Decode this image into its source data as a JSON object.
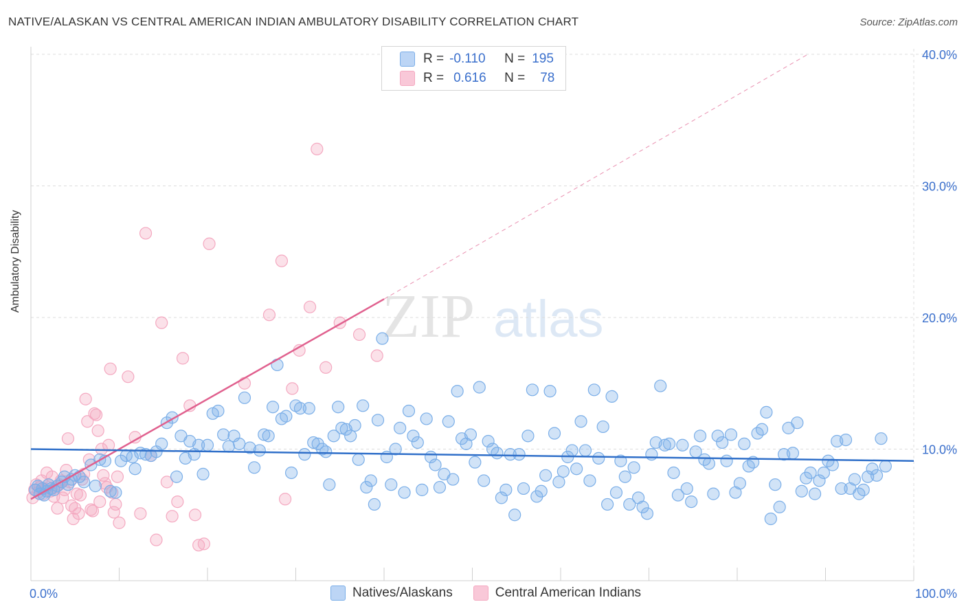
{
  "header": {
    "title": "NATIVE/ALASKAN VS CENTRAL AMERICAN INDIAN AMBULATORY DISABILITY CORRELATION CHART",
    "source": "Source: ZipAtlas.com"
  },
  "legend": {
    "rows": [
      {
        "r_label": "R =",
        "r_value": "-0.110",
        "n_label": "N =",
        "n_value": "195"
      },
      {
        "r_label": "R =",
        "r_value": "0.616",
        "n_label": "N =",
        "n_value": "78"
      }
    ]
  },
  "watermark": {
    "zip": "ZIP",
    "atlas": "atlas"
  },
  "colors": {
    "blue": "#7aaee8",
    "blue_line": "#2f6fc9",
    "pink": "#f4a8c0",
    "pink_line": "#e0608e",
    "tick_label": "#3a6fcc",
    "grid": "#dcdcdc"
  },
  "chart_data": {
    "type": "scatter",
    "title": "NATIVE/ALASKAN VS CENTRAL AMERICAN INDIAN AMBULATORY DISABILITY CORRELATION CHART",
    "xlabel": "",
    "ylabel": "Ambulatory Disability",
    "xlim": [
      0,
      100
    ],
    "ylim": [
      0,
      40
    ],
    "x_tick_labels": [
      "0.0%",
      "100.0%"
    ],
    "y_tick_labels": [
      "10.0%",
      "20.0%",
      "30.0%",
      "40.0%"
    ],
    "y_ticks": [
      10,
      20,
      30,
      40
    ],
    "grid": true,
    "series": [
      {
        "name": "Natives/Alaskans",
        "color": "#7aaee8",
        "trend": {
          "x": [
            0,
            100
          ],
          "y": [
            10.0,
            9.1
          ]
        },
        "points": [
          [
            0.5,
            6.9
          ],
          [
            0.8,
            7.2
          ],
          [
            1.0,
            6.6
          ],
          [
            1.3,
            7.0
          ],
          [
            1.5,
            6.5
          ],
          [
            1.8,
            6.8
          ],
          [
            2.0,
            7.3
          ],
          [
            2.3,
            7.0
          ],
          [
            2.6,
            6.9
          ],
          [
            3.0,
            7.2
          ],
          [
            3.5,
            7.5
          ],
          [
            3.8,
            7.9
          ],
          [
            4.2,
            7.3
          ],
          [
            4.6,
            7.7
          ],
          [
            5.0,
            8.0
          ],
          [
            5.5,
            7.9
          ],
          [
            6.0,
            7.5
          ],
          [
            6.8,
            8.8
          ],
          [
            7.3,
            7.2
          ],
          [
            7.8,
            9.2
          ],
          [
            8.4,
            9.1
          ],
          [
            9.0,
            6.8
          ],
          [
            9.6,
            6.7
          ],
          [
            10.2,
            9.1
          ],
          [
            10.8,
            9.5
          ],
          [
            11.5,
            9.4
          ],
          [
            11.8,
            8.5
          ],
          [
            12.4,
            9.7
          ],
          [
            13.0,
            9.6
          ],
          [
            13.6,
            9.5
          ],
          [
            14.2,
            9.8
          ],
          [
            14.8,
            10.4
          ],
          [
            15.4,
            12.0
          ],
          [
            16.0,
            12.4
          ],
          [
            16.5,
            7.9
          ],
          [
            17.0,
            11.0
          ],
          [
            17.5,
            9.3
          ],
          [
            18.0,
            10.6
          ],
          [
            18.5,
            9.6
          ],
          [
            19.0,
            10.3
          ],
          [
            19.5,
            8.1
          ],
          [
            20.0,
            10.3
          ],
          [
            20.6,
            12.7
          ],
          [
            21.2,
            12.9
          ],
          [
            21.8,
            11.1
          ],
          [
            22.4,
            10.2
          ],
          [
            23.0,
            11.0
          ],
          [
            23.6,
            10.4
          ],
          [
            24.2,
            13.9
          ],
          [
            24.8,
            10.1
          ],
          [
            25.3,
            8.6
          ],
          [
            25.9,
            9.9
          ],
          [
            26.4,
            11.1
          ],
          [
            26.9,
            11.0
          ],
          [
            27.4,
            13.2
          ],
          [
            27.9,
            16.4
          ],
          [
            28.4,
            12.3
          ],
          [
            28.9,
            12.5
          ],
          [
            29.5,
            8.2
          ],
          [
            30.0,
            13.3
          ],
          [
            30.5,
            13.1
          ],
          [
            31.0,
            9.6
          ],
          [
            31.5,
            13.1
          ],
          [
            32.0,
            10.5
          ],
          [
            32.5,
            10.4
          ],
          [
            33.0,
            10.0
          ],
          [
            33.4,
            9.8
          ],
          [
            33.8,
            7.3
          ],
          [
            34.3,
            11.0
          ],
          [
            34.8,
            13.2
          ],
          [
            35.2,
            11.6
          ],
          [
            35.7,
            11.5
          ],
          [
            36.2,
            11.0
          ],
          [
            36.7,
            11.8
          ],
          [
            37.1,
            9.2
          ],
          [
            37.6,
            13.3
          ],
          [
            38.0,
            7.1
          ],
          [
            38.5,
            7.6
          ],
          [
            38.9,
            5.8
          ],
          [
            39.3,
            12.2
          ],
          [
            39.8,
            18.4
          ],
          [
            40.3,
            9.4
          ],
          [
            40.8,
            7.3
          ],
          [
            41.3,
            10.0
          ],
          [
            41.8,
            11.6
          ],
          [
            42.3,
            6.7
          ],
          [
            42.8,
            12.9
          ],
          [
            43.3,
            11.0
          ],
          [
            43.8,
            10.5
          ],
          [
            44.3,
            6.9
          ],
          [
            44.8,
            12.3
          ],
          [
            45.3,
            9.4
          ],
          [
            45.8,
            8.8
          ],
          [
            46.3,
            7.1
          ],
          [
            46.8,
            8.1
          ],
          [
            47.3,
            12.1
          ],
          [
            47.8,
            7.7
          ],
          [
            48.3,
            14.4
          ],
          [
            48.8,
            10.8
          ],
          [
            49.3,
            10.4
          ],
          [
            49.8,
            11.1
          ],
          [
            50.3,
            9.0
          ],
          [
            50.8,
            14.7
          ],
          [
            51.3,
            7.6
          ],
          [
            51.8,
            10.6
          ],
          [
            52.3,
            10.0
          ],
          [
            52.8,
            9.7
          ],
          [
            53.3,
            6.3
          ],
          [
            53.8,
            6.9
          ],
          [
            54.3,
            9.6
          ],
          [
            54.8,
            5.0
          ],
          [
            55.3,
            9.6
          ],
          [
            55.8,
            7.0
          ],
          [
            56.3,
            11.0
          ],
          [
            56.8,
            14.5
          ],
          [
            57.3,
            6.4
          ],
          [
            57.8,
            6.8
          ],
          [
            58.3,
            8.0
          ],
          [
            58.8,
            14.4
          ],
          [
            59.3,
            11.2
          ],
          [
            59.8,
            7.5
          ],
          [
            60.3,
            8.3
          ],
          [
            60.8,
            9.4
          ],
          [
            61.3,
            9.9
          ],
          [
            61.8,
            8.5
          ],
          [
            62.3,
            12.1
          ],
          [
            62.8,
            9.9
          ],
          [
            63.3,
            7.6
          ],
          [
            63.8,
            14.5
          ],
          [
            64.3,
            9.3
          ],
          [
            64.8,
            11.7
          ],
          [
            65.3,
            5.8
          ],
          [
            65.8,
            14.0
          ],
          [
            66.3,
            6.7
          ],
          [
            66.8,
            9.1
          ],
          [
            67.3,
            7.9
          ],
          [
            67.8,
            5.8
          ],
          [
            68.3,
            8.6
          ],
          [
            68.8,
            6.3
          ],
          [
            69.3,
            5.6
          ],
          [
            69.8,
            5.1
          ],
          [
            70.3,
            9.6
          ],
          [
            70.8,
            10.5
          ],
          [
            71.3,
            14.8
          ],
          [
            71.8,
            10.3
          ],
          [
            72.3,
            10.4
          ],
          [
            72.8,
            8.2
          ],
          [
            73.3,
            6.5
          ],
          [
            73.8,
            10.3
          ],
          [
            74.3,
            7.0
          ],
          [
            74.8,
            6.0
          ],
          [
            75.3,
            9.8
          ],
          [
            75.8,
            11.0
          ],
          [
            76.3,
            9.2
          ],
          [
            76.8,
            8.9
          ],
          [
            77.3,
            6.6
          ],
          [
            77.8,
            11.0
          ],
          [
            78.3,
            10.5
          ],
          [
            78.8,
            9.1
          ],
          [
            79.3,
            11.1
          ],
          [
            79.8,
            6.7
          ],
          [
            80.3,
            7.4
          ],
          [
            80.8,
            10.4
          ],
          [
            81.3,
            8.7
          ],
          [
            81.8,
            9.0
          ],
          [
            82.3,
            11.2
          ],
          [
            82.8,
            11.5
          ],
          [
            83.3,
            12.8
          ],
          [
            83.8,
            4.7
          ],
          [
            84.3,
            7.3
          ],
          [
            84.8,
            5.6
          ],
          [
            85.3,
            9.6
          ],
          [
            85.8,
            11.6
          ],
          [
            86.3,
            9.7
          ],
          [
            86.8,
            12.0
          ],
          [
            87.3,
            6.8
          ],
          [
            87.8,
            7.8
          ],
          [
            88.3,
            8.2
          ],
          [
            88.8,
            6.6
          ],
          [
            89.3,
            7.6
          ],
          [
            89.8,
            8.2
          ],
          [
            90.3,
            9.1
          ],
          [
            90.8,
            8.8
          ],
          [
            91.3,
            10.6
          ],
          [
            91.8,
            7.0
          ],
          [
            92.3,
            10.7
          ],
          [
            92.8,
            7.0
          ],
          [
            93.3,
            7.7
          ],
          [
            93.8,
            6.6
          ],
          [
            94.3,
            6.9
          ],
          [
            94.8,
            7.9
          ],
          [
            95.3,
            8.5
          ],
          [
            95.8,
            8.0
          ],
          [
            96.3,
            10.8
          ],
          [
            96.8,
            8.7
          ]
        ]
      },
      {
        "name": "Central American Indians",
        "color": "#f4a8c0",
        "trend": {
          "x": [
            0,
            40
          ],
          "y": [
            6.2,
            21.4
          ]
        },
        "trend_extension": {
          "x": [
            40,
            88
          ],
          "y": [
            21.4,
            40.0
          ]
        },
        "points": [
          [
            0.2,
            6.3
          ],
          [
            0.4,
            6.9
          ],
          [
            0.6,
            7.3
          ],
          [
            0.8,
            6.7
          ],
          [
            1.0,
            7.1
          ],
          [
            1.2,
            7.6
          ],
          [
            1.4,
            6.6
          ],
          [
            1.6,
            7.0
          ],
          [
            1.8,
            8.2
          ],
          [
            2.0,
            7.3
          ],
          [
            2.2,
            6.8
          ],
          [
            2.4,
            7.9
          ],
          [
            2.6,
            6.4
          ],
          [
            2.8,
            7.1
          ],
          [
            3.0,
            5.5
          ],
          [
            3.2,
            7.3
          ],
          [
            3.4,
            7.6
          ],
          [
            3.6,
            6.3
          ],
          [
            3.8,
            6.9
          ],
          [
            4.0,
            8.4
          ],
          [
            4.2,
            10.8
          ],
          [
            4.4,
            7.5
          ],
          [
            4.6,
            5.7
          ],
          [
            4.8,
            4.7
          ],
          [
            5.0,
            5.5
          ],
          [
            5.2,
            6.6
          ],
          [
            5.4,
            5.1
          ],
          [
            5.6,
            6.5
          ],
          [
            5.8,
            7.7
          ],
          [
            6.0,
            8.1
          ],
          [
            6.2,
            13.8
          ],
          [
            6.4,
            12.1
          ],
          [
            6.6,
            9.2
          ],
          [
            6.8,
            5.4
          ],
          [
            7.0,
            5.3
          ],
          [
            7.2,
            12.7
          ],
          [
            7.4,
            12.6
          ],
          [
            7.6,
            11.4
          ],
          [
            7.8,
            6.0
          ],
          [
            8.0,
            10.0
          ],
          [
            8.2,
            8.0
          ],
          [
            8.4,
            7.4
          ],
          [
            8.6,
            7.1
          ],
          [
            8.8,
            10.3
          ],
          [
            9.0,
            16.1
          ],
          [
            9.2,
            6.7
          ],
          [
            9.4,
            5.2
          ],
          [
            9.6,
            5.8
          ],
          [
            9.8,
            7.9
          ],
          [
            10.0,
            4.4
          ],
          [
            11.0,
            15.5
          ],
          [
            11.8,
            10.9
          ],
          [
            12.4,
            5.1
          ],
          [
            13.0,
            26.4
          ],
          [
            13.6,
            9.5
          ],
          [
            14.2,
            3.1
          ],
          [
            14.8,
            19.6
          ],
          [
            15.4,
            7.5
          ],
          [
            16.0,
            4.9
          ],
          [
            16.6,
            6.0
          ],
          [
            17.2,
            16.9
          ],
          [
            18.0,
            13.3
          ],
          [
            18.6,
            5.0
          ],
          [
            19.0,
            2.7
          ],
          [
            19.6,
            2.8
          ],
          [
            20.2,
            25.6
          ],
          [
            24.2,
            15.0
          ],
          [
            27.0,
            20.2
          ],
          [
            28.4,
            24.3
          ],
          [
            28.8,
            6.2
          ],
          [
            29.6,
            14.6
          ],
          [
            30.4,
            17.5
          ],
          [
            31.6,
            20.8
          ],
          [
            32.4,
            32.8
          ],
          [
            33.4,
            16.2
          ],
          [
            35.0,
            19.6
          ],
          [
            37.2,
            18.7
          ],
          [
            39.2,
            17.1
          ]
        ]
      }
    ]
  },
  "bottom_legend": [
    {
      "label": "Natives/Alaskans"
    },
    {
      "label": "Central American Indians"
    }
  ]
}
